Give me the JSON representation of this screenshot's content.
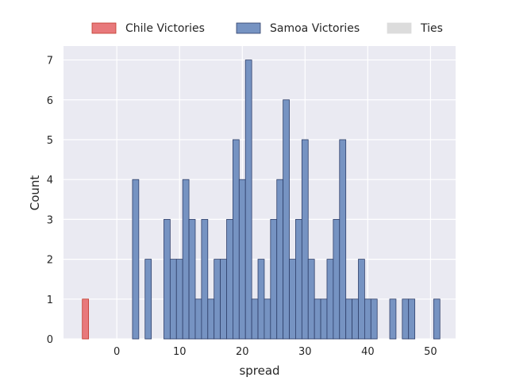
{
  "chart_data": {
    "type": "bar",
    "title": "",
    "xlabel": "spread",
    "ylabel": "Count",
    "xlim": [
      -8.5,
      54
    ],
    "ylim": [
      0,
      7.35
    ],
    "grid": true,
    "bin_width": 1,
    "x_ticks": [
      "0",
      "10",
      "20",
      "30",
      "40",
      "50"
    ],
    "y_ticks": [
      "0",
      "1",
      "2",
      "3",
      "4",
      "5",
      "6",
      "7"
    ],
    "legend_position": "top-center",
    "series": [
      {
        "name": "Chile Victories",
        "color": "#e8797b",
        "edge": "#c0392b",
        "x": [
          -5
        ],
        "values": [
          1
        ]
      },
      {
        "name": "Samoa Victories",
        "color": "#7693c2",
        "edge": "#2f3f6a",
        "x": [
          3,
          5,
          8,
          9,
          10,
          11,
          12,
          13,
          14,
          15,
          16,
          17,
          18,
          19,
          20,
          21,
          22,
          23,
          24,
          25,
          26,
          27,
          28,
          29,
          30,
          31,
          32,
          33,
          34,
          35,
          36,
          37,
          38,
          39,
          40,
          41,
          44,
          46,
          47,
          51
        ],
        "values": [
          4,
          2,
          3,
          2,
          2,
          4,
          3,
          1,
          3,
          1,
          2,
          2,
          3,
          5,
          4,
          7,
          1,
          2,
          1,
          3,
          4,
          6,
          2,
          3,
          5,
          2,
          1,
          1,
          2,
          3,
          5,
          1,
          1,
          2,
          1,
          1,
          1,
          1,
          1,
          1
        ]
      },
      {
        "name": "Ties",
        "color": "#dcdcdc",
        "edge": "#dcdcdc",
        "x": [],
        "values": []
      }
    ]
  }
}
